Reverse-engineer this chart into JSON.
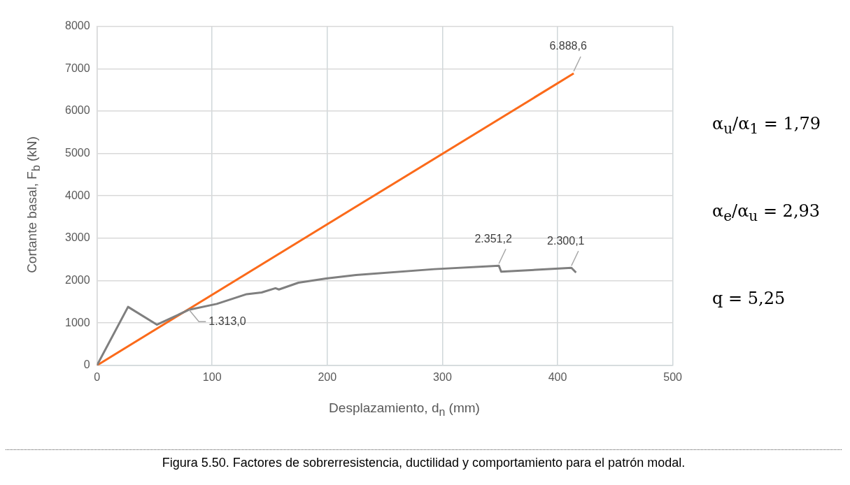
{
  "chart_data": {
    "type": "line",
    "xlabel": "Desplazamiento, d$_{n}$ (mm)",
    "ylabel": "Cortante basal, F$_{b}$ (kN)",
    "xlim": [
      0,
      500
    ],
    "xticks": [
      0,
      100,
      200,
      300,
      400,
      500
    ],
    "ylim": [
      0,
      8000
    ],
    "yticks": [
      0,
      1000,
      2000,
      3000,
      4000,
      5000,
      6000,
      7000,
      8000
    ],
    "grid": true,
    "legend": false,
    "marker": "none",
    "line_style": "solid",
    "series": [
      {
        "color": "#7f7f7f",
        "x": [
          0,
          27,
          52,
          80,
          104,
          130,
          143,
          155,
          158,
          175,
          199,
          225,
          293,
          349,
          351,
          412,
          416
        ],
        "values": [
          0,
          1380,
          960,
          1313,
          1450,
          1680,
          1720,
          1820,
          1790,
          1950,
          2050,
          2130,
          2270,
          2351.2,
          2210,
          2300.1,
          2190
        ],
        "value_labels": [
          null,
          null,
          null,
          "1.313,0",
          null,
          null,
          null,
          null,
          null,
          null,
          null,
          null,
          null,
          "2.351,2",
          null,
          "2.300,1",
          null
        ]
      },
      {
        "color": "#fb6a1a",
        "x": [
          0,
          414
        ],
        "values": [
          0,
          6888.6
        ],
        "value_labels": [
          null,
          "6.888,6"
        ]
      }
    ],
    "annotations": [
      "α$_{u}$/α$_{1}$ = 1,79",
      "α$_{e}$/α$_{u}$ = 2,93",
      "q = 5,25",
      "Figura 5.50. Factores de sobrerresistencia, ductilidad y comportamiento para el patrón modal."
    ]
  }
}
